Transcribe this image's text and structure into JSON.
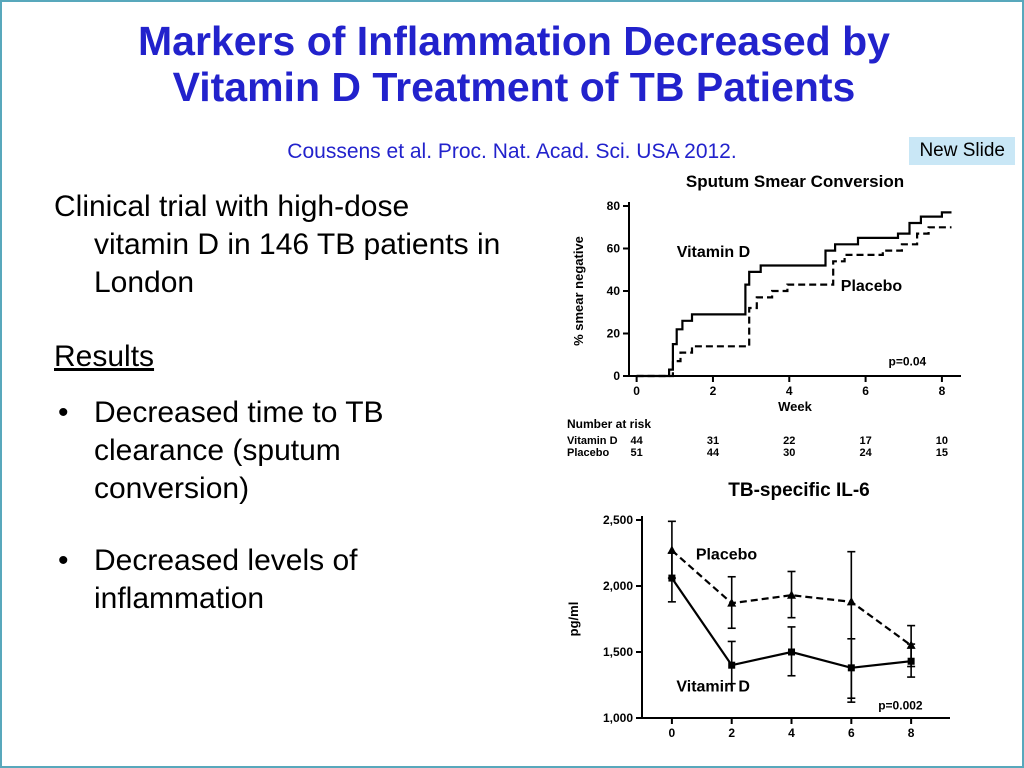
{
  "slide": {
    "title": "Markers of Inflammation Decreased by Vitamin D Treatment of TB Patients",
    "citation": "Coussens et al.  Proc. Nat. Acad. Sci. USA 2012.",
    "badge": "New Slide",
    "intro": "Clinical trial with high-dose vitamin D in 146 TB patients in London",
    "results_heading": "Results",
    "bullet_glyph": "•",
    "bullets": [
      "Decreased time to TB clearance (sputum conversion)",
      "Decreased levels of inflammation"
    ]
  },
  "colors": {
    "title_blue": "#2222cc",
    "badge_bg": "#c9e7f6",
    "border_teal": "#58a8bc",
    "ink": "#000000"
  },
  "chart_data": [
    {
      "id": "sputum-smear-conversion",
      "type": "line",
      "title": "Sputum Smear Conversion",
      "xlabel": "Week",
      "ylabel": "% smear negative",
      "xlim": [
        -0.2,
        8.5
      ],
      "ylim": [
        0,
        80
      ],
      "xticks": [
        0,
        2,
        4,
        6,
        8
      ],
      "yticks": [
        0,
        20,
        40,
        60,
        80
      ],
      "grid": false,
      "legend": "in-plot labels",
      "series": [
        {
          "name": "Vitamin D",
          "style": "solid",
          "points": [
            [
              0,
              0
            ],
            [
              0.85,
              0
            ],
            [
              0.85,
              3
            ],
            [
              0.95,
              3
            ],
            [
              0.95,
              15
            ],
            [
              1.05,
              15
            ],
            [
              1.05,
              22
            ],
            [
              1.2,
              22
            ],
            [
              1.2,
              26
            ],
            [
              1.45,
              26
            ],
            [
              1.45,
              29
            ],
            [
              2.85,
              29
            ],
            [
              2.85,
              43
            ],
            [
              2.95,
              43
            ],
            [
              2.95,
              49
            ],
            [
              3.25,
              49
            ],
            [
              3.25,
              52
            ],
            [
              4.95,
              52
            ],
            [
              4.95,
              59
            ],
            [
              5.2,
              59
            ],
            [
              5.2,
              62
            ],
            [
              5.8,
              62
            ],
            [
              5.8,
              65
            ],
            [
              6.85,
              65
            ],
            [
              6.85,
              67
            ],
            [
              7.15,
              67
            ],
            [
              7.15,
              72
            ],
            [
              7.45,
              72
            ],
            [
              7.45,
              75
            ],
            [
              8.0,
              75
            ],
            [
              8.0,
              77
            ],
            [
              8.25,
              77
            ]
          ]
        },
        {
          "name": "Placebo",
          "style": "dashed",
          "points": [
            [
              0,
              0
            ],
            [
              0.95,
              0
            ],
            [
              0.95,
              7
            ],
            [
              1.15,
              7
            ],
            [
              1.15,
              11
            ],
            [
              1.45,
              11
            ],
            [
              1.45,
              14
            ],
            [
              2.95,
              14
            ],
            [
              2.95,
              32
            ],
            [
              3.15,
              32
            ],
            [
              3.15,
              37
            ],
            [
              3.55,
              37
            ],
            [
              3.55,
              40
            ],
            [
              3.95,
              40
            ],
            [
              3.95,
              43
            ],
            [
              5.15,
              43
            ],
            [
              5.15,
              54
            ],
            [
              5.45,
              54
            ],
            [
              5.45,
              57
            ],
            [
              6.45,
              57
            ],
            [
              6.45,
              59
            ],
            [
              6.95,
              59
            ],
            [
              6.95,
              62
            ],
            [
              7.35,
              62
            ],
            [
              7.35,
              67
            ],
            [
              7.65,
              67
            ],
            [
              7.65,
              70
            ],
            [
              8.25,
              70
            ]
          ]
        }
      ],
      "annotations": [
        {
          "text": "Vitamin D",
          "x": 1.05,
          "y": 56
        },
        {
          "text": "Placebo",
          "x": 5.35,
          "y": 40
        },
        {
          "text": "p=0.04",
          "x": 6.6,
          "y": 5,
          "size": "small"
        }
      ],
      "number_at_risk": {
        "label": "Number at risk",
        "rows": [
          {
            "name": "Vitamin D",
            "values": [
              44,
              31,
              22,
              17,
              10
            ]
          },
          {
            "name": "Placebo",
            "values": [
              51,
              44,
              30,
              24,
              15
            ]
          }
        ]
      }
    },
    {
      "id": "tb-specific-il6",
      "type": "line",
      "title": "TB-specific IL-6",
      "xlabel": "",
      "ylabel": "pg/ml",
      "xlim": [
        -1,
        9.3
      ],
      "ylim": [
        1000,
        2500
      ],
      "xticks": [
        0,
        2,
        4,
        6,
        8
      ],
      "yticks": [
        1000,
        1500,
        2000,
        2500
      ],
      "ytick_labels": [
        "1,000",
        "1,500",
        "2,000",
        "2,500"
      ],
      "grid": false,
      "legend": "in-plot labels",
      "series": [
        {
          "name": "Placebo",
          "style": "dashed",
          "marker": "triangle",
          "points": [
            [
              0,
              2270
            ],
            [
              2,
              1870
            ],
            [
              4,
              1930
            ],
            [
              6,
              1880
            ],
            [
              8,
              1550
            ]
          ],
          "errors": [
            [
              2060,
              2490
            ],
            [
              1680,
              2070
            ],
            [
              1760,
              2110
            ],
            [
              1120,
              2260
            ],
            [
              1390,
              1700
            ]
          ]
        },
        {
          "name": "Vitamin D",
          "style": "solid",
          "marker": "square",
          "points": [
            [
              0,
              2060
            ],
            [
              2,
              1400
            ],
            [
              4,
              1500
            ],
            [
              6,
              1380
            ],
            [
              8,
              1430
            ]
          ],
          "errors": [
            [
              1880,
              2250
            ],
            [
              1260,
              1580
            ],
            [
              1320,
              1690
            ],
            [
              1150,
              1600
            ],
            [
              1310,
              1560
            ]
          ]
        }
      ],
      "annotations": [
        {
          "text": "Placebo",
          "x": 0.8,
          "y": 2200
        },
        {
          "text": "Vitamin D",
          "x": 0.15,
          "y": 1200
        },
        {
          "text": "p=0.002",
          "x": 6.9,
          "y": 1065,
          "size": "small"
        }
      ]
    }
  ]
}
